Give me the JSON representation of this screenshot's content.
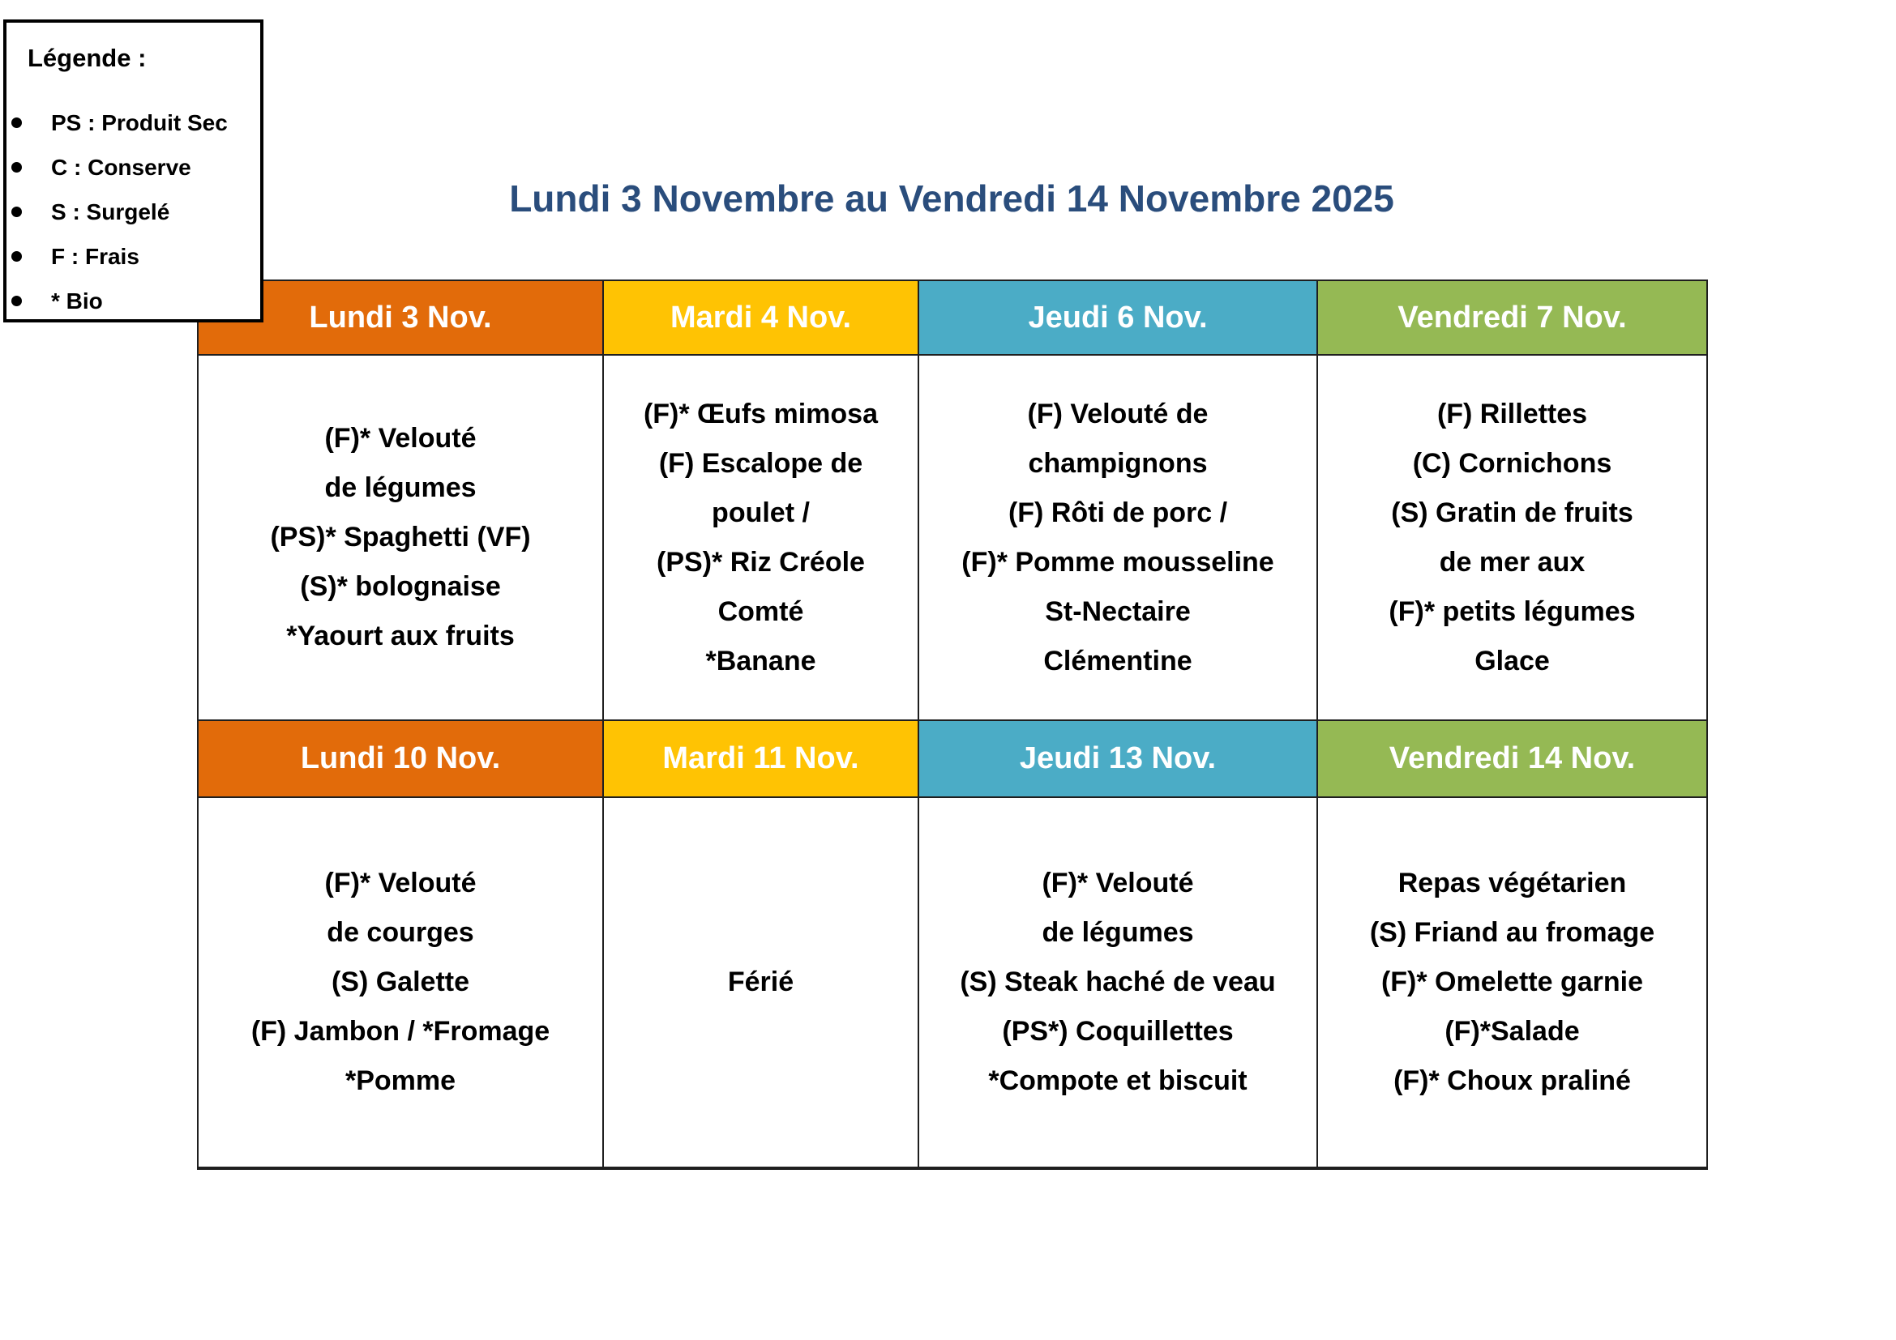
{
  "title": "Lundi 3 Novembre au Vendredi 14 Novembre 2025",
  "legend": {
    "title": "Légende :",
    "items": [
      "PS : Produit Sec",
      "C : Conserve",
      "S : Surgelé",
      "F : Frais",
      "* Bio"
    ]
  },
  "colors": {
    "title_text": "#2A4D7C",
    "monday": "#E26B0A",
    "tuesday": "#FFC303",
    "thursday": "#4BACC6",
    "friday": "#95B954",
    "header_text": "#FFFFFF",
    "border": "#1F1F1F"
  },
  "table": {
    "weeks": [
      {
        "headers": [
          {
            "label": "Lundi 3 Nov.",
            "color": "#E26B0A"
          },
          {
            "label": "Mardi 4 Nov.",
            "color": "#FFC303"
          },
          {
            "label": "Jeudi 6 Nov.",
            "color": "#4BACC6"
          },
          {
            "label": "Vendredi 7 Nov.",
            "color": "#95B954"
          }
        ],
        "menus": [
          [
            "(F)* Velouté",
            "de légumes",
            "(PS)* Spaghetti (VF)",
            "(S)* bolognaise",
            "*Yaourt aux fruits"
          ],
          [
            "(F)* Œufs mimosa",
            "(F) Escalope de",
            "poulet /",
            "(PS)* Riz Créole",
            "Comté",
            "*Banane"
          ],
          [
            "(F) Velouté de",
            "champignons",
            "(F) Rôti de porc /",
            "(F)* Pomme mousseline",
            "St-Nectaire",
            "Clémentine"
          ],
          [
            "(F) Rillettes",
            "(C) Cornichons",
            "(S) Gratin de fruits",
            "de mer aux",
            "(F)* petits légumes",
            "Glace"
          ]
        ]
      },
      {
        "headers": [
          {
            "label": "Lundi 10 Nov.",
            "color": "#E26B0A"
          },
          {
            "label": "Mardi 11 Nov.",
            "color": "#FFC303"
          },
          {
            "label": "Jeudi 13 Nov.",
            "color": "#4BACC6"
          },
          {
            "label": "Vendredi 14 Nov.",
            "color": "#95B954"
          }
        ],
        "menus": [
          [
            "(F)* Velouté",
            "de courges",
            "(S) Galette",
            "(F) Jambon / *Fromage",
            "*Pomme"
          ],
          [
            "Férié"
          ],
          [
            "(F)* Velouté",
            "de légumes",
            "(S) Steak haché de veau",
            "(PS*) Coquillettes",
            "*Compote et biscuit"
          ],
          [
            "Repas végétarien",
            "(S) Friand au fromage",
            "(F)* Omelette garnie",
            "(F)*Salade",
            "(F)* Choux praliné"
          ]
        ]
      }
    ]
  }
}
